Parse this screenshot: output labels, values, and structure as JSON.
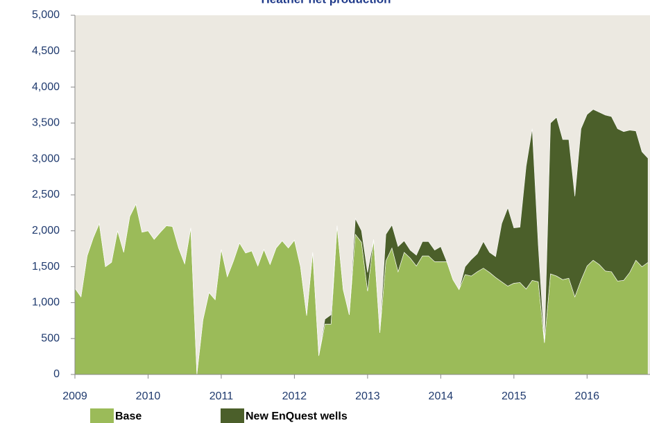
{
  "chart_data": {
    "type": "stacked-area",
    "title": "Heather net production",
    "x": [
      2009.0,
      2009.083,
      2009.167,
      2009.25,
      2009.333,
      2009.417,
      2009.5,
      2009.583,
      2009.667,
      2009.75,
      2009.833,
      2009.917,
      2010.0,
      2010.083,
      2010.167,
      2010.25,
      2010.333,
      2010.417,
      2010.5,
      2010.583,
      2010.667,
      2010.75,
      2010.833,
      2010.917,
      2011.0,
      2011.083,
      2011.167,
      2011.25,
      2011.333,
      2011.417,
      2011.5,
      2011.583,
      2011.667,
      2011.75,
      2011.833,
      2011.917,
      2012.0,
      2012.083,
      2012.167,
      2012.25,
      2012.333,
      2012.417,
      2012.5,
      2012.583,
      2012.667,
      2012.75,
      2012.833,
      2012.917,
      2013.0,
      2013.083,
      2013.167,
      2013.25,
      2013.333,
      2013.417,
      2013.5,
      2013.583,
      2013.667,
      2013.75,
      2013.833,
      2013.917,
      2014.0,
      2014.083,
      2014.167,
      2014.25,
      2014.333,
      2014.417,
      2014.5,
      2014.583,
      2014.667,
      2014.75,
      2014.833,
      2014.917,
      2015.0,
      2015.083,
      2015.167,
      2015.25,
      2015.333,
      2015.417,
      2015.5,
      2015.583,
      2015.667,
      2015.75,
      2015.833,
      2015.917,
      2016.0,
      2016.083,
      2016.167,
      2016.25,
      2016.333,
      2016.417,
      2016.5,
      2016.583,
      2016.667,
      2016.75,
      2016.833
    ],
    "series": [
      {
        "name": "Base",
        "color": "#9bbb59",
        "values": [
          1200,
          1080,
          1650,
          1900,
          2100,
          1500,
          1560,
          2000,
          1700,
          2200,
          2370,
          1980,
          2000,
          1880,
          1980,
          2070,
          2060,
          1760,
          1540,
          2040,
          0,
          760,
          1140,
          1040,
          1740,
          1360,
          1580,
          1830,
          1690,
          1720,
          1510,
          1740,
          1530,
          1760,
          1860,
          1760,
          1870,
          1500,
          820,
          1700,
          260,
          700,
          700,
          2070,
          1180,
          830,
          1950,
          1840,
          1160,
          1880,
          580,
          1580,
          1760,
          1430,
          1700,
          1620,
          1510,
          1650,
          1650,
          1570,
          1570,
          1570,
          1320,
          1180,
          1390,
          1370,
          1430,
          1480,
          1420,
          1350,
          1290,
          1230,
          1270,
          1280,
          1190,
          1310,
          1290,
          440,
          1400,
          1370,
          1320,
          1340,
          1080,
          1310,
          1510,
          1590,
          1530,
          1440,
          1430,
          1300,
          1310,
          1420,
          1590,
          1500,
          1560
        ]
      },
      {
        "name": "New EnQuest wells",
        "color": "#4b5f2a",
        "values": [
          0,
          0,
          0,
          0,
          0,
          0,
          0,
          0,
          0,
          0,
          0,
          0,
          0,
          0,
          0,
          0,
          0,
          0,
          0,
          0,
          0,
          0,
          0,
          0,
          0,
          0,
          0,
          0,
          0,
          0,
          0,
          0,
          0,
          0,
          0,
          0,
          0,
          0,
          0,
          0,
          0,
          70,
          130,
          0,
          0,
          0,
          220,
          160,
          260,
          0,
          0,
          370,
          320,
          350,
          160,
          110,
          150,
          200,
          200,
          160,
          210,
          0,
          0,
          0,
          110,
          230,
          250,
          370,
          280,
          290,
          810,
          1090,
          770,
          770,
          1710,
          2110,
          510,
          0,
          2100,
          2210,
          1950,
          1930,
          1400,
          2110,
          2110,
          2100,
          2120,
          2170,
          2160,
          2120,
          2070,
          1980,
          1800,
          1600,
          1450
        ]
      }
    ],
    "xlim": [
      2009,
      2016.86
    ],
    "xticks": [
      2009,
      2010,
      2011,
      2012,
      2013,
      2014,
      2015,
      2016
    ],
    "ylim": [
      0,
      5000
    ],
    "yticks": [
      0,
      500,
      {
        "value": 1000,
        "label": "1,000"
      },
      {
        "value": 1500,
        "label": "1,500"
      },
      {
        "value": 2000,
        "label": "2,000"
      },
      {
        "value": 2500,
        "label": "2,500"
      },
      {
        "value": 3000,
        "label": "3,000"
      },
      {
        "value": 3500,
        "label": "3,500"
      },
      {
        "value": 4000,
        "label": "4,000"
      },
      {
        "value": 4500,
        "label": "4,500"
      },
      {
        "value": 5000,
        "label": "5,000"
      }
    ]
  }
}
